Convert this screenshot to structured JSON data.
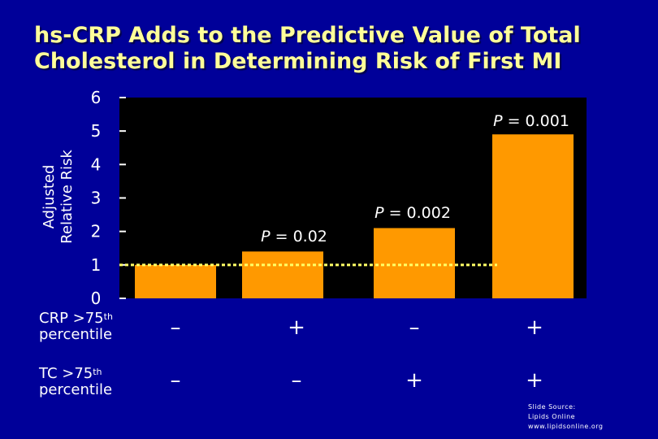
{
  "title": {
    "line1": "hs-CRP Adds to the Predictive Value of Total",
    "line2": "Cholesterol in Determining Risk of First MI"
  },
  "chart_data": {
    "type": "bar",
    "ylabel": [
      "Adjusted",
      "Relative Risk"
    ],
    "ylim": [
      0,
      6
    ],
    "yticks": [
      "0",
      "1",
      "2",
      "3",
      "4",
      "5",
      "6"
    ],
    "categories": [
      "CRP − / TC −",
      "CRP + / TC −",
      "CRP − / TC +",
      "CRP + / TC +"
    ],
    "values": [
      1.0,
      1.4,
      2.1,
      4.9
    ],
    "annotations": [
      "",
      "P = 0.02",
      "P = 0.002",
      "P = 0.001"
    ],
    "reference_line": 1.0,
    "grid": false
  },
  "rows": [
    {
      "label": "CRP >75",
      "sup": "th",
      "label2": "percentile",
      "marks": [
        "–",
        "+",
        "–",
        "+"
      ]
    },
    {
      "label": "TC >75",
      "sup": "th",
      "label2": "percentile",
      "marks": [
        "–",
        "–",
        "+",
        "+"
      ]
    }
  ],
  "source": {
    "line1": "Slide Source:",
    "line2": "Lipids Online",
    "line3": "www.lipidsonline.org"
  },
  "colors": {
    "background": "#000099",
    "plot_area": "#000000",
    "bar": "#ff9900",
    "reference_line": "#ffff66",
    "title": "#ffff99"
  }
}
